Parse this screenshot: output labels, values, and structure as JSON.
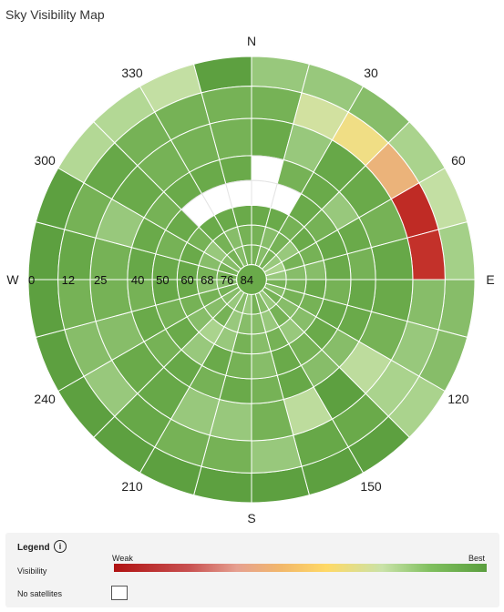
{
  "header": {
    "title": "Sky Visibility Map"
  },
  "chart_data": {
    "type": "polar-heatmap",
    "title": "Sky Visibility Map",
    "axis": "azimuth (degrees, clockwise from N) vs elevation (degrees)",
    "azimuth_step_deg": 15,
    "elevation_bands": [
      0,
      12,
      25,
      40,
      50,
      60,
      68,
      76,
      84,
      90
    ],
    "direction_labels": [
      "N",
      "30",
      "60",
      "E",
      "120",
      "150",
      "S",
      "210",
      "240",
      "W",
      "300",
      "330"
    ],
    "elevation_labels": [
      "0",
      "12",
      "25",
      "40",
      "50",
      "60",
      "68",
      "76",
      "84"
    ],
    "scale": {
      "min_label": "Weak",
      "max_label": "Best",
      "min": 0,
      "max": 1
    },
    "value_note": "Visibility on a 0 (Weak) to 1 (Best) scale; null = no satellites",
    "visibility_by_band": [
      [
        0.82,
        0.82,
        0.85,
        0.78,
        0.7,
        0.8,
        0.85,
        0.85,
        0.78,
        0.98,
        0.98,
        0.98,
        0.98,
        0.98,
        0.98,
        0.98,
        0.98,
        0.98,
        0.98,
        0.98,
        0.75,
        0.75,
        0.7,
        0.98
      ],
      [
        0.88,
        0.65,
        0.55,
        0.35,
        0.12,
        0.15,
        0.85,
        0.82,
        0.78,
        0.9,
        0.92,
        0.82,
        0.88,
        0.88,
        0.92,
        0.82,
        0.85,
        0.88,
        0.92,
        0.88,
        0.92,
        0.88,
        0.88,
        0.88
      ],
      [
        0.9,
        0.82,
        0.92,
        0.9,
        0.88,
        0.92,
        0.9,
        0.88,
        0.72,
        0.98,
        0.72,
        0.88,
        0.82,
        0.82,
        0.92,
        0.9,
        0.85,
        0.88,
        0.88,
        0.82,
        0.9,
        0.88,
        0.88,
        0.88
      ],
      [
        null,
        0.88,
        0.9,
        0.82,
        0.9,
        0.88,
        0.92,
        0.9,
        0.85,
        0.85,
        0.92,
        0.88,
        0.9,
        0.88,
        0.92,
        0.88,
        0.9,
        0.88,
        0.92,
        0.9,
        0.88,
        0.9,
        0.9,
        0.9
      ],
      [
        null,
        null,
        0.9,
        0.88,
        0.92,
        0.9,
        0.88,
        0.92,
        0.9,
        0.88,
        0.9,
        0.85,
        0.88,
        0.9,
        0.82,
        0.9,
        0.88,
        0.92,
        0.9,
        0.88,
        0.9,
        null,
        null,
        null
      ],
      [
        0.9,
        0.9,
        0.88,
        0.9,
        0.88,
        0.85,
        0.9,
        0.88,
        0.85,
        0.82,
        0.88,
        0.85,
        0.88,
        0.82,
        0.78,
        0.85,
        0.88,
        0.9,
        0.92,
        0.9,
        0.88,
        0.9,
        0.9,
        0.9
      ],
      [
        0.88,
        0.85,
        0.88,
        0.82,
        0.88,
        0.85,
        0.88,
        0.88,
        0.85,
        0.88,
        0.82,
        0.85,
        0.85,
        0.82,
        0.88,
        0.85,
        0.88,
        0.85,
        0.88,
        0.85,
        0.82,
        0.88,
        0.85,
        0.88
      ],
      [
        0.88,
        0.85,
        0.88,
        0.82,
        0.78,
        0.82,
        0.88,
        0.85,
        0.88,
        0.82,
        0.85,
        0.88,
        0.82,
        0.85,
        0.82,
        0.85,
        0.88,
        0.85,
        0.88,
        0.88,
        0.85,
        0.88,
        0.85,
        0.88
      ],
      [
        0.88,
        0.88,
        0.88,
        0.88,
        0.88,
        0.88,
        0.88,
        0.88,
        0.88,
        0.88,
        0.88,
        0.88,
        0.88,
        0.88,
        0.88,
        0.88,
        0.88,
        0.88,
        0.88,
        0.88,
        0.88,
        0.88,
        0.88,
        0.88
      ]
    ]
  },
  "legend": {
    "title": "Legend",
    "visibility_label": "Visibility",
    "weak": "Weak",
    "best": "Best",
    "no_sat_label": "No satellites",
    "colors": {
      "weak": "#b01212",
      "mid": "#ffd966",
      "best": "#5a9e3e",
      "none": "#ffffff"
    }
  }
}
